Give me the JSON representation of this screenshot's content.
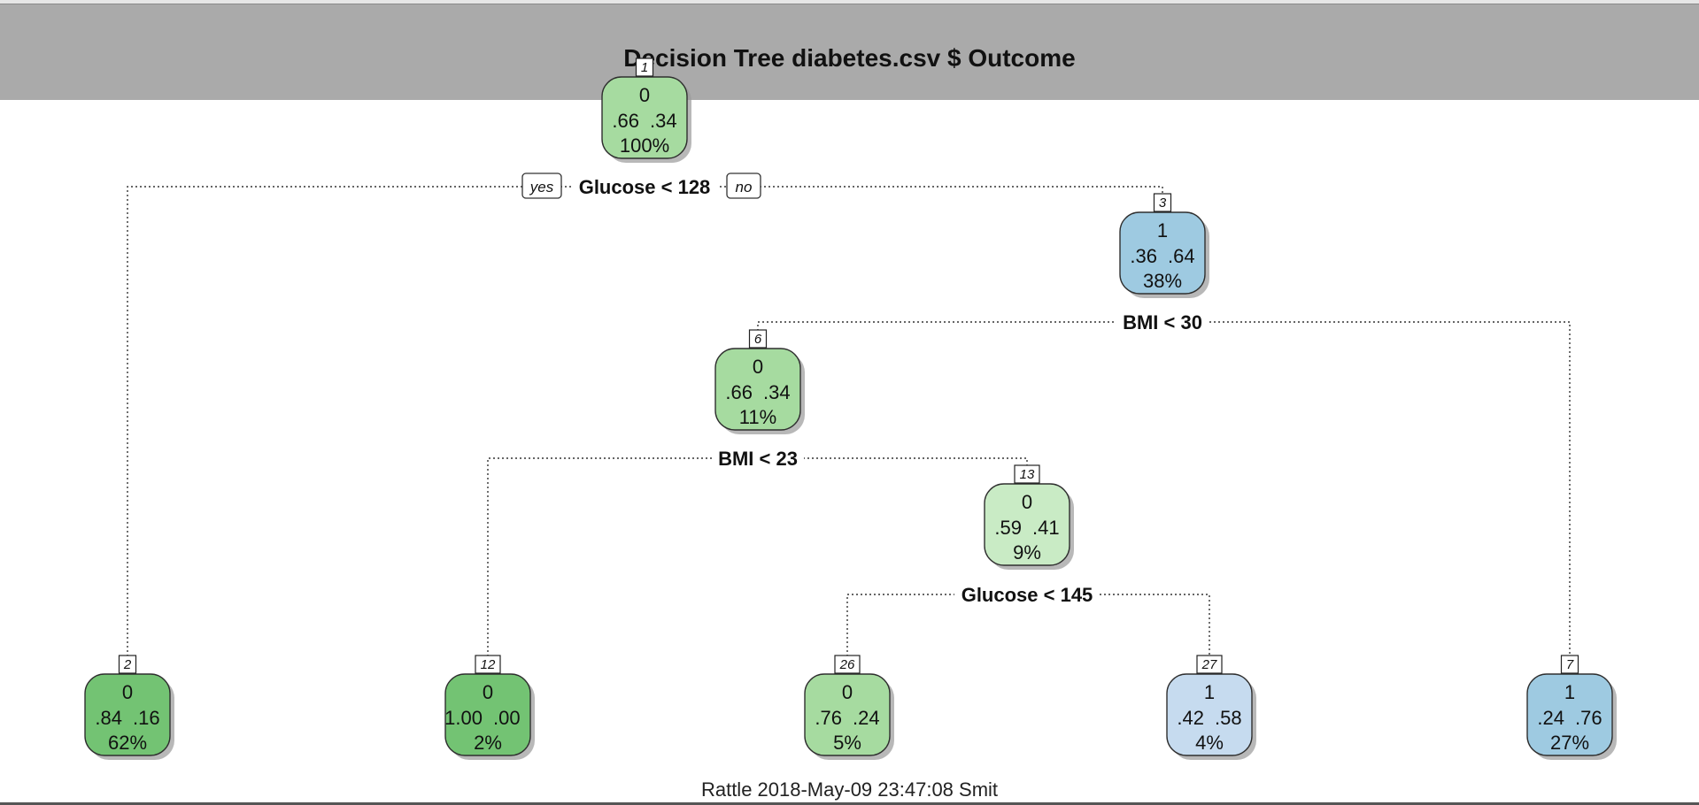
{
  "title": "Decision Tree diabetes.csv $ Outcome",
  "footer": "Rattle 2018-May-09 23:47:08 Smit",
  "root_branch_labels": {
    "yes": "yes",
    "no": "no"
  },
  "colors": {
    "class0_dark": "#73c373",
    "class0_mid": "#a6dba0",
    "class0_light": "#c9ebc5",
    "class1_dark": "#9ecae1",
    "class1_light": "#c6dbef",
    "edge": "#333333"
  },
  "nodes": [
    {
      "id": "1",
      "cls": "0",
      "probs": [
        ".66",
        ".34"
      ],
      "pct": "100%",
      "fill": "#a6dba0"
    },
    {
      "id": "2",
      "cls": "0",
      "probs": [
        ".84",
        ".16"
      ],
      "pct": "62%",
      "fill": "#73c373"
    },
    {
      "id": "3",
      "cls": "1",
      "probs": [
        ".36",
        ".64"
      ],
      "pct": "38%",
      "fill": "#9ecae1"
    },
    {
      "id": "6",
      "cls": "0",
      "probs": [
        ".66",
        ".34"
      ],
      "pct": "11%",
      "fill": "#a6dba0"
    },
    {
      "id": "7",
      "cls": "1",
      "probs": [
        ".24",
        ".76"
      ],
      "pct": "27%",
      "fill": "#9ecae1"
    },
    {
      "id": "12",
      "cls": "0",
      "probs": [
        "1.00",
        ".00"
      ],
      "pct": "2%",
      "fill": "#73c373"
    },
    {
      "id": "13",
      "cls": "0",
      "probs": [
        ".59",
        ".41"
      ],
      "pct": "9%",
      "fill": "#c9ebc5"
    },
    {
      "id": "26",
      "cls": "0",
      "probs": [
        ".76",
        ".24"
      ],
      "pct": "5%",
      "fill": "#a6dba0"
    },
    {
      "id": "27",
      "cls": "1",
      "probs": [
        ".42",
        ".58"
      ],
      "pct": "4%",
      "fill": "#c6dbef"
    }
  ],
  "splits": [
    {
      "node": "1",
      "label": "Glucose < 128",
      "left": "2",
      "right": "3"
    },
    {
      "node": "3",
      "label": "BMI < 30",
      "left": "6",
      "right": "7"
    },
    {
      "node": "6",
      "label": "BMI < 23",
      "left": "12",
      "right": "13"
    },
    {
      "node": "13",
      "label": "Glucose < 145",
      "left": "26",
      "right": "27"
    }
  ]
}
